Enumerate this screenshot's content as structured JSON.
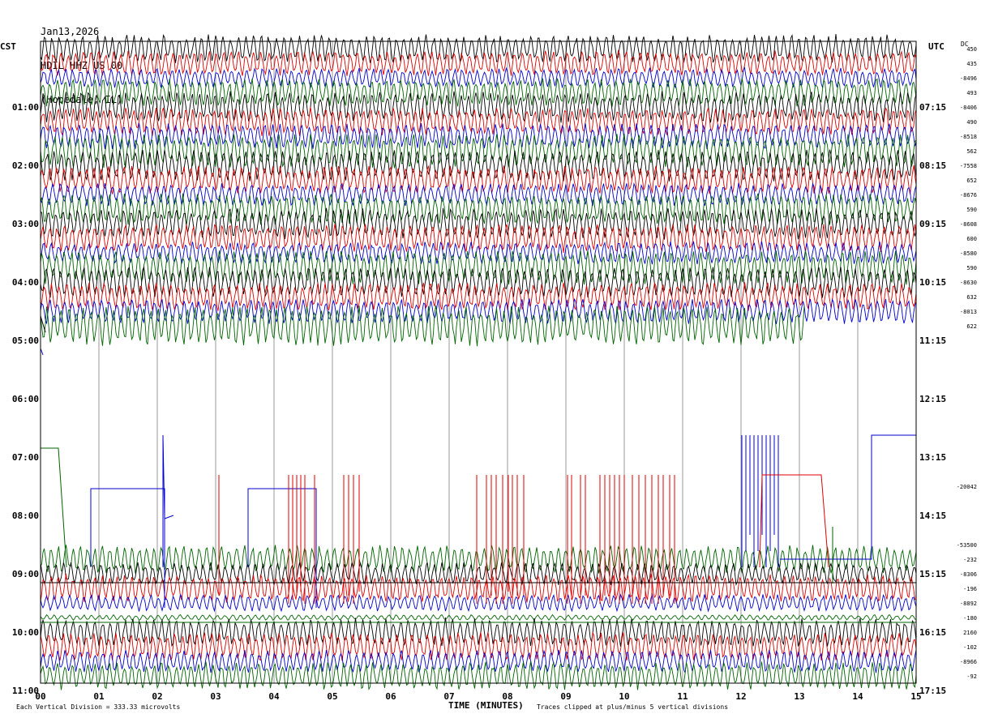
{
  "header": {
    "date": "Jan13,2026",
    "station": "HDIL HHZ US 00",
    "location": "(Hopedale, IL)"
  },
  "labels": {
    "left_tz": "CST",
    "right_tz": "UTC",
    "dc_header": "DC",
    "x_title": "TIME (MINUTES)",
    "scale_note": "Each Vertical Division =  333.33 microvolts",
    "clip_note": "Traces clipped at plus/minus 5 vertical divisions"
  },
  "colors": {
    "black": "#000000",
    "red": "#e00000",
    "blue": "#0000d0",
    "green": "#006400",
    "grid": "#808080"
  },
  "chart_data": {
    "type": "line",
    "title": "HDIL HHZ US 00",
    "xlabel": "TIME (MINUTES)",
    "ylabel_left": "CST",
    "ylabel_right": "UTC",
    "x_ticks": [
      "00",
      "01",
      "02",
      "03",
      "04",
      "05",
      "06",
      "07",
      "08",
      "09",
      "10",
      "11",
      "12",
      "13",
      "14",
      "15"
    ],
    "xlim": [
      0,
      15
    ],
    "left_hours": [
      "01:00",
      "02:00",
      "03:00",
      "04:00",
      "05:00",
      "06:00",
      "07:00",
      "08:00",
      "09:00",
      "10:00",
      "11:00"
    ],
    "right_hours": [
      "07:15",
      "08:15",
      "09:15",
      "10:15",
      "11:15",
      "12:15",
      "13:15",
      "14:15",
      "15:15",
      "16:15",
      "17:15"
    ],
    "row_colors": [
      "black",
      "red",
      "blue",
      "green"
    ],
    "rows": [
      {
        "color": "black",
        "dc": "450",
        "amp": 1.0,
        "end": 15
      },
      {
        "color": "red",
        "dc": "435",
        "amp": 0.9,
        "end": 15
      },
      {
        "color": "blue",
        "dc": "-8496",
        "amp": 0.7,
        "end": 15
      },
      {
        "color": "green",
        "dc": "493",
        "amp": 1.0,
        "end": 15
      },
      {
        "color": "black",
        "dc": "-8406",
        "amp": 1.1,
        "end": 15
      },
      {
        "color": "red",
        "dc": "490",
        "amp": 1.0,
        "end": 15
      },
      {
        "color": "blue",
        "dc": "-8518",
        "amp": 0.9,
        "end": 15
      },
      {
        "color": "green",
        "dc": "562",
        "amp": 1.2,
        "end": 15
      },
      {
        "color": "black",
        "dc": "-7558",
        "amp": 1.1,
        "end": 15
      },
      {
        "color": "red",
        "dc": "652",
        "amp": 1.0,
        "end": 15
      },
      {
        "color": "blue",
        "dc": "-8676",
        "amp": 0.8,
        "end": 15
      },
      {
        "color": "green",
        "dc": "590",
        "amp": 1.1,
        "end": 15
      },
      {
        "color": "black",
        "dc": "-8608",
        "amp": 1.1,
        "end": 15
      },
      {
        "color": "red",
        "dc": "600",
        "amp": 1.0,
        "end": 15
      },
      {
        "color": "blue",
        "dc": "-8580",
        "amp": 0.8,
        "end": 15
      },
      {
        "color": "green",
        "dc": "590",
        "amp": 1.2,
        "end": 15
      },
      {
        "color": "black",
        "dc": "-8630",
        "amp": 1.1,
        "end": 15
      },
      {
        "color": "red",
        "dc": "632",
        "amp": 1.0,
        "end": 15
      },
      {
        "color": "blue",
        "dc": "-8013",
        "amp": 0.9,
        "end": 15
      },
      {
        "color": "green",
        "dc": "622",
        "amp": 1.4,
        "end": 13.1
      },
      {
        "color": "black",
        "dc": "",
        "amp": 0,
        "end": 0
      },
      {
        "color": "red",
        "dc": "",
        "amp": 0,
        "end": 0
      },
      {
        "color": "blue",
        "dc": "",
        "amp": 0,
        "end": 0
      },
      {
        "color": "green",
        "dc": "",
        "amp": 0,
        "end": 0
      },
      {
        "color": "black",
        "dc": "",
        "amp": 0,
        "end": 0
      },
      {
        "color": "red",
        "dc": "",
        "amp": 0,
        "end": 0
      },
      {
        "color": "blue",
        "dc": "",
        "amp": 0,
        "end": 0
      },
      {
        "color": "green",
        "dc": "",
        "amp": 0,
        "end": 0
      },
      {
        "color": "black",
        "dc": "",
        "amp": 0,
        "end": 0
      },
      {
        "color": "red",
        "dc": "",
        "amp": 0,
        "end": 0
      },
      {
        "color": "blue",
        "dc": "-20042",
        "amp": 0,
        "end": 0
      },
      {
        "color": "green",
        "dc": "",
        "amp": 0,
        "end": 0
      },
      {
        "color": "black",
        "dc": "",
        "amp": 0,
        "end": 0
      },
      {
        "color": "red",
        "dc": "",
        "amp": 0,
        "end": 0
      },
      {
        "color": "blue",
        "dc": "-53500",
        "amp": 0,
        "end": 0
      },
      {
        "color": "green",
        "dc": "-232",
        "amp": 1.0,
        "end": 15
      },
      {
        "color": "black",
        "dc": "-8306",
        "amp": 0.8,
        "end": 15
      },
      {
        "color": "red",
        "dc": "-196",
        "amp": 1.0,
        "end": 15
      },
      {
        "color": "blue",
        "dc": "-8892",
        "amp": 0.6,
        "end": 15
      },
      {
        "color": "green",
        "dc": "-180",
        "amp": 0.2,
        "end": 15
      },
      {
        "color": "black",
        "dc": "2160",
        "amp": 1.0,
        "end": 15
      },
      {
        "color": "red",
        "dc": "-102",
        "amp": 1.0,
        "end": 15
      },
      {
        "color": "blue",
        "dc": "-8966",
        "amp": 0.8,
        "end": 15
      },
      {
        "color": "green",
        "dc": "-92",
        "amp": 1.0,
        "end": 15
      }
    ]
  }
}
